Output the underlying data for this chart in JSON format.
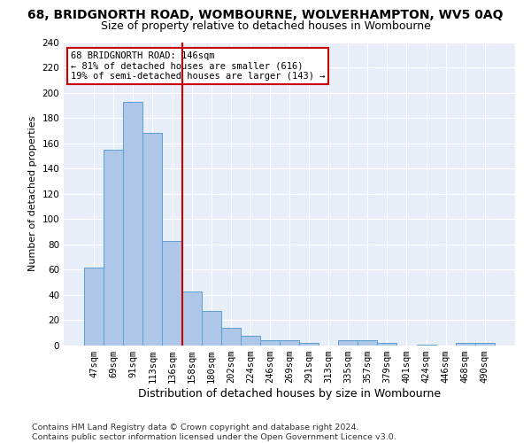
{
  "title1": "68, BRIDGNORTH ROAD, WOMBOURNE, WOLVERHAMPTON, WV5 0AQ",
  "title2": "Size of property relative to detached houses in Wombourne",
  "xlabel": "Distribution of detached houses by size in Wombourne",
  "ylabel": "Number of detached properties",
  "footnote": "Contains HM Land Registry data © Crown copyright and database right 2024.\nContains public sector information licensed under the Open Government Licence v3.0.",
  "bar_labels": [
    "47sqm",
    "69sqm",
    "91sqm",
    "113sqm",
    "136sqm",
    "158sqm",
    "180sqm",
    "202sqm",
    "224sqm",
    "246sqm",
    "269sqm",
    "291sqm",
    "313sqm",
    "335sqm",
    "357sqm",
    "379sqm",
    "401sqm",
    "424sqm",
    "446sqm",
    "468sqm",
    "490sqm"
  ],
  "bar_values": [
    62,
    155,
    193,
    168,
    83,
    43,
    27,
    14,
    8,
    4,
    4,
    2,
    0,
    4,
    4,
    2,
    0,
    1,
    0,
    2,
    2
  ],
  "bar_color": "#aec6e8",
  "bar_edgecolor": "#5a9fd4",
  "vline_x": 4.5,
  "vline_color": "#cc0000",
  "annotation_text": "68 BRIDGNORTH ROAD: 146sqm\n← 81% of detached houses are smaller (616)\n19% of semi-detached houses are larger (143) →",
  "annotation_box_color": "#cc0000",
  "ylim": [
    0,
    240
  ],
  "yticks": [
    0,
    20,
    40,
    60,
    80,
    100,
    120,
    140,
    160,
    180,
    200,
    220,
    240
  ],
  "bg_color": "#e8eef8",
  "grid_color": "#ffffff",
  "title1_fontsize": 10,
  "title2_fontsize": 9,
  "xlabel_fontsize": 9,
  "ylabel_fontsize": 8,
  "tick_fontsize": 7.5,
  "footnote_fontsize": 6.8
}
